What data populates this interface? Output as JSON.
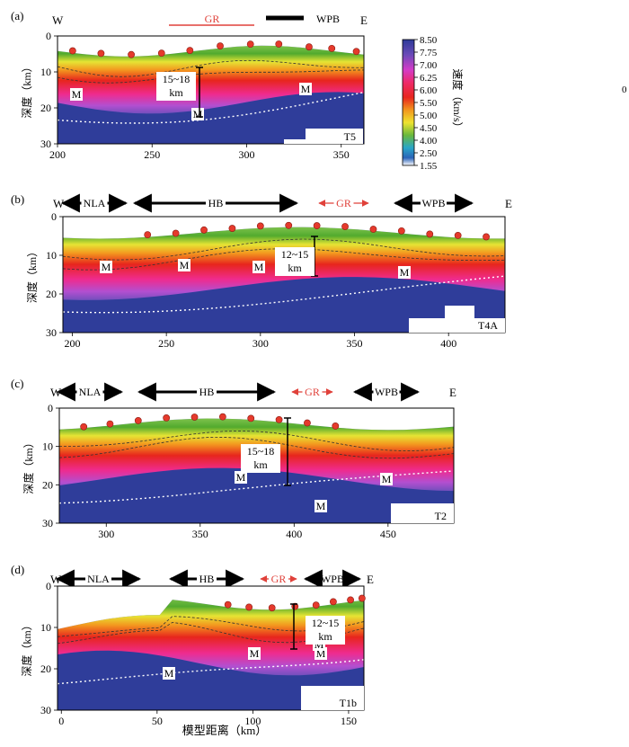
{
  "ylabel": "深度（km）",
  "xlabel": "模型距离（km）",
  "colorbar": {
    "label": "速度（km/s）",
    "ticks": [
      "8.50",
      "7.75",
      "7.00",
      "6.25",
      "6.00",
      "5.50",
      "5.00",
      "4.50",
      "4.00",
      "2.50",
      "1.55"
    ]
  },
  "panels": [
    {
      "label": "(a)",
      "west": "W",
      "east": "E",
      "regions": [
        {
          "text": "GR",
          "color": "#e0413a"
        },
        {
          "text": "WPB",
          "color": "#000000"
        }
      ],
      "ticks_y": [
        "0",
        "10",
        "20",
        "30"
      ],
      "ticks_x": [
        "200",
        "250",
        "300",
        "350"
      ],
      "xlim": [
        200,
        362
      ],
      "moho_labels": [
        "M",
        "M",
        "M"
      ],
      "thickness": "15~18",
      "thickness_unit": "km",
      "profile": "T5",
      "stations_x": [
        208,
        223,
        239,
        255,
        270,
        286,
        302,
        317,
        333,
        345,
        358
      ]
    },
    {
      "label": "(b)",
      "west": "W",
      "east": "E",
      "regions": [
        {
          "text": "NLA",
          "color": "#000000"
        },
        {
          "text": "HB",
          "color": "#000000"
        },
        {
          "text": "GR",
          "color": "#e0413a"
        },
        {
          "text": "WPB",
          "color": "#000000"
        }
      ],
      "ticks_y": [
        "0",
        "10",
        "20",
        "30"
      ],
      "ticks_x": [
        "200",
        "250",
        "300",
        "350",
        "400"
      ],
      "xlim": [
        195,
        430
      ],
      "moho_labels": [
        "M",
        "M",
        "M",
        "M"
      ],
      "thickness": "12~15",
      "thickness_unit": "km",
      "profile": "T4A",
      "stations_x": [
        240,
        255,
        270,
        285,
        300,
        315,
        330,
        345,
        360,
        375,
        390,
        405,
        420
      ]
    },
    {
      "label": "(c)",
      "west": "W",
      "east": "E",
      "regions": [
        {
          "text": "NLA",
          "color": "#000000"
        },
        {
          "text": "HB",
          "color": "#000000"
        },
        {
          "text": "GR",
          "color": "#e0413a"
        },
        {
          "text": "WPB",
          "color": "#000000"
        }
      ],
      "ticks_y": [
        "0",
        "10",
        "20",
        "30"
      ],
      "ticks_x": [
        "300",
        "350",
        "400",
        "450"
      ],
      "xlim": [
        275,
        485
      ],
      "moho_labels": [
        "M",
        "M",
        "M"
      ],
      "thickness": "15~18",
      "thickness_unit": "km",
      "profile": "T2",
      "stations_x": [
        288,
        302,
        317,
        332,
        347,
        362,
        377,
        392,
        407,
        422
      ]
    },
    {
      "label": "(d)",
      "west": "W",
      "east": "E",
      "regions": [
        {
          "text": "NLA",
          "color": "#000000"
        },
        {
          "text": "HB",
          "color": "#000000"
        },
        {
          "text": "GR",
          "color": "#e0413a"
        },
        {
          "text": "WPB",
          "color": "#000000"
        }
      ],
      "ticks_y": [
        "0",
        "10",
        "20",
        "30"
      ],
      "ticks_x": [
        "0",
        "50",
        "100",
        "150"
      ],
      "xlim": [
        -2,
        158
      ],
      "moho_labels": [
        "M",
        "M",
        "M",
        "M"
      ],
      "thickness": "12~15",
      "thickness_unit": "km",
      "profile": "T1b",
      "stations_x": [
        87,
        98,
        110,
        122,
        133,
        142,
        151,
        157
      ]
    }
  ],
  "extra": {
    "side_mark": "0"
  }
}
